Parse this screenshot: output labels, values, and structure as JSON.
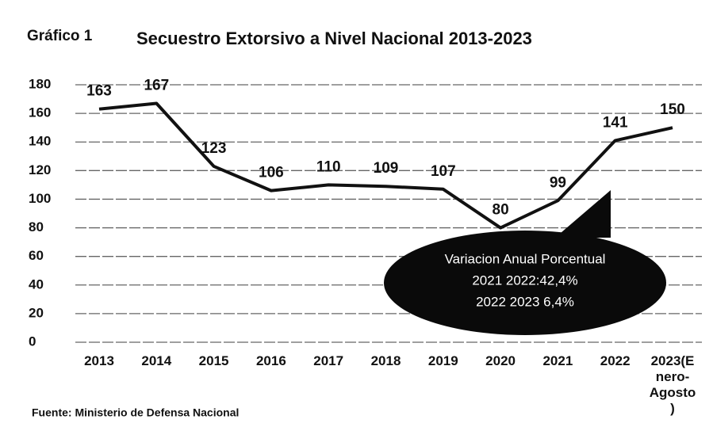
{
  "chart_data": {
    "type": "line",
    "label": "Gráfico 1",
    "title": "Secuestro Extorsivo a Nivel Nacional 2013-2023",
    "categories": [
      "2013",
      "2014",
      "2015",
      "2016",
      "2017",
      "2018",
      "2019",
      "2020",
      "2021",
      "2022",
      "2023(Enero-Agosto)"
    ],
    "values": [
      163,
      167,
      123,
      106,
      110,
      109,
      107,
      80,
      99,
      141,
      150
    ],
    "color": "#111111",
    "ylim": [
      0,
      180
    ],
    "yticks": [
      0,
      20,
      40,
      60,
      80,
      100,
      120,
      140,
      160,
      180
    ],
    "grid": true,
    "annotation": [
      "Variacion Anual Porcentual",
      "2021 2022:42,4%",
      "2022 2023 6,4%"
    ],
    "source": "Fuente: Ministerio de Defensa Nacional"
  }
}
